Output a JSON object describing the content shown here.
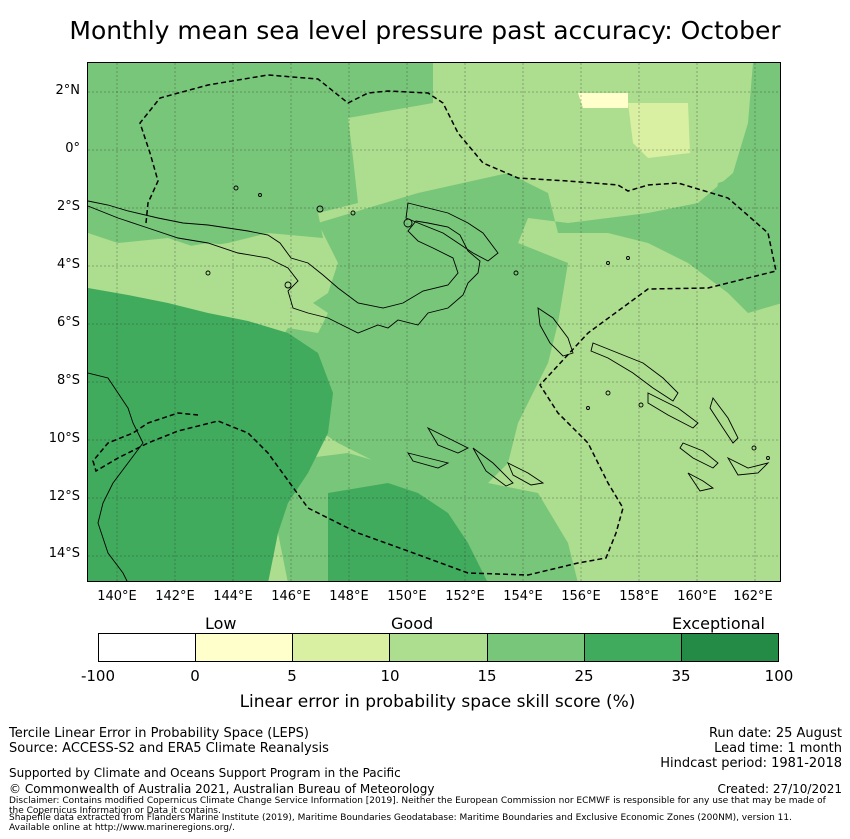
{
  "title": "Monthly mean sea level pressure past accuracy: October",
  "map": {
    "lat_labels": [
      "2°N",
      "0°",
      "2°S",
      "4°S",
      "6°S",
      "8°S",
      "10°S",
      "12°S",
      "14°S"
    ],
    "lon_labels": [
      "140°E",
      "142°E",
      "144°E",
      "146°E",
      "148°E",
      "150°E",
      "152°E",
      "154°E",
      "156°E",
      "158°E",
      "160°E",
      "162°E"
    ],
    "colors": {
      "exceptional": "#238b45",
      "very_good": "#41ab5d",
      "good": "#78c679",
      "fair": "#addd8e",
      "low_fair": "#d9f0a3",
      "low": "#ffffcc",
      "none": "#ffffff"
    }
  },
  "colorbar": {
    "category_labels": [
      "Low",
      "Good",
      "Exceptional"
    ],
    "ticks": [
      "-100",
      "0",
      "5",
      "10",
      "15",
      "25",
      "35",
      "100"
    ],
    "colors": [
      "#ffffff",
      "#ffffcc",
      "#d9f0a3",
      "#addd8e",
      "#78c679",
      "#41ab5d",
      "#238b45"
    ],
    "xlabel": "Linear error in probability space skill score (%)"
  },
  "footer": {
    "left_line1": "Tercile Linear Error in Probability Space (LEPS)",
    "left_line2": "Source: ACCESS-S2 and ERA5 Climate Reanalysis",
    "support": "Supported by Climate and Oceans Support Program in the Pacific",
    "copyright": "© Commonwealth of Australia 2021, Australian Bureau of Meteorology",
    "disclaimer1": "Disclaimer: Contains modified Copernicus Climate Change Service Information [2019]. Neither the European Commission nor ECMWF is responsible for any use that may be made of",
    "disclaimer2": "the Copernicus Information or Data it contains.",
    "shapefile1": "Shapefile data extracted from Flanders Marine Institute (2019), Maritime Boundaries Geodatabase: Maritime Boundaries and Exclusive Economic Zones (200NM), version 11.",
    "shapefile2": "Available online at http://www.marineregions.org/.",
    "run_date": "Run date: 25 August",
    "lead_time": "Lead time: 1 month",
    "hindcast": "Hindcast period: 1981-2018",
    "created": "Created: 27/10/2021"
  }
}
